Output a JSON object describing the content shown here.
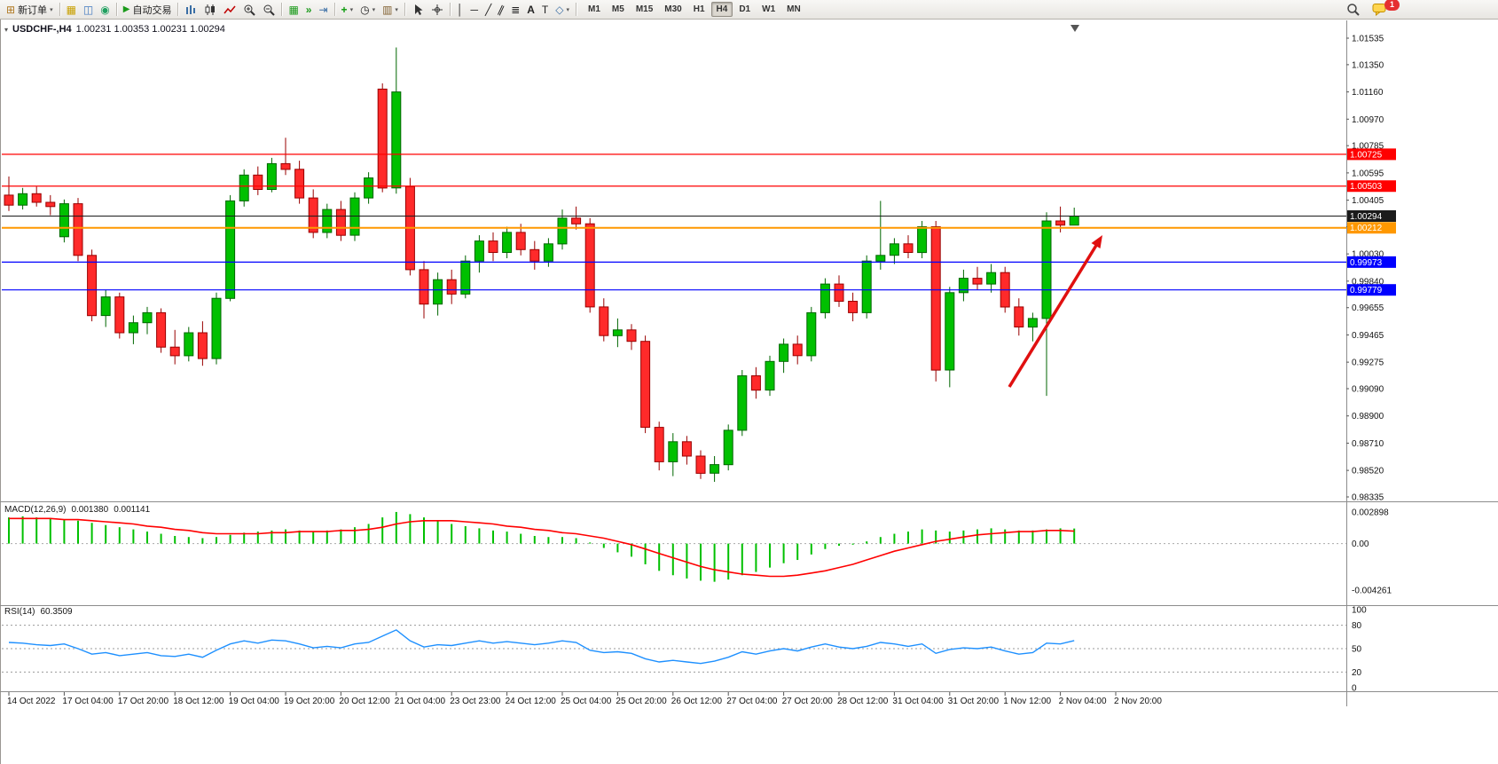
{
  "toolbar": {
    "new_order_label": "新订单",
    "autotrade_label": "自动交易",
    "timeframes": [
      "M1",
      "M5",
      "M15",
      "M30",
      "H1",
      "H4",
      "D1",
      "W1",
      "MN"
    ],
    "active_timeframe": "H4",
    "badge_count": "1"
  },
  "chart": {
    "symbol_period": "USDCHF-,H4",
    "ohlc_text": "1.00231 1.00353 1.00231 1.00294",
    "colors": {
      "up": "#00C000",
      "up_edge": "#006600",
      "down": "#FF2A2A",
      "down_edge": "#990000"
    },
    "price_axis": [
      "1.01535",
      "1.01350",
      "1.01160",
      "1.00970",
      "1.00785",
      "1.00595",
      "1.00405",
      "1.00220",
      "1.00030",
      "0.99840",
      "0.99655",
      "0.99465",
      "0.99275",
      "0.99090",
      "0.98900",
      "0.98710",
      "0.98520",
      "0.98335"
    ],
    "time_axis": [
      "14 Oct 2022",
      "17 Oct 04:00",
      "17 Oct 20:00",
      "18 Oct 12:00",
      "19 Oct 04:00",
      "19 Oct 20:00",
      "20 Oct 12:00",
      "21 Oct 04:00",
      "23 Oct 23:00",
      "24 Oct 12:00",
      "25 Oct 04:00",
      "25 Oct 20:00",
      "26 Oct 12:00",
      "27 Oct 04:00",
      "27 Oct 20:00",
      "28 Oct 12:00",
      "31 Oct 04:00",
      "31 Oct 20:00",
      "1 Nov 12:00",
      "2 Nov 04:00",
      "2 Nov 20:00"
    ],
    "hlines": [
      {
        "label": "1.00725",
        "value": 1.00725,
        "color": "#FF0000",
        "width": 1.2
      },
      {
        "label": "1.00503",
        "value": 1.00503,
        "color": "#FF0000",
        "width": 1.2
      },
      {
        "label": "1.00294",
        "value": 1.00294,
        "color": "#1b1b1b",
        "width": 1
      },
      {
        "label": "1.00212",
        "value": 1.00212,
        "color": "#FF9800",
        "width": 2
      },
      {
        "label": "0.99973",
        "value": 0.99973,
        "color": "#0000FF",
        "width": 1.2
      },
      {
        "label": "0.99779",
        "value": 0.99779,
        "color": "#0000FF",
        "width": 1.2
      }
    ],
    "arrow": {
      "color": "#E01010"
    },
    "candles": [
      [
        1.0044,
        1.0057,
        1.0033,
        1.0037
      ],
      [
        1.0037,
        1.0049,
        1.0034,
        1.0045
      ],
      [
        1.0045,
        1.005,
        1.0036,
        1.0039
      ],
      [
        1.0039,
        1.0044,
        1.003,
        1.0036
      ],
      [
        1.0015,
        1.0041,
        1.0011,
        1.0038
      ],
      [
        1.0038,
        1.0042,
        0.9998,
        1.0002
      ],
      [
        1.0002,
        1.0006,
        0.9956,
        0.996
      ],
      [
        0.996,
        0.9978,
        0.9952,
        0.9973
      ],
      [
        0.9973,
        0.9976,
        0.9944,
        0.9948
      ],
      [
        0.9948,
        0.996,
        0.994,
        0.9955
      ],
      [
        0.9955,
        0.9966,
        0.9947,
        0.9962
      ],
      [
        0.9962,
        0.9965,
        0.9934,
        0.9938
      ],
      [
        0.9938,
        0.995,
        0.9926,
        0.9932
      ],
      [
        0.9932,
        0.9952,
        0.9928,
        0.9948
      ],
      [
        0.9948,
        0.9956,
        0.9925,
        0.993
      ],
      [
        0.993,
        0.9976,
        0.9926,
        0.9972
      ],
      [
        0.9972,
        1.0044,
        0.997,
        1.004
      ],
      [
        1.004,
        1.0062,
        1.0036,
        1.0058
      ],
      [
        1.0058,
        1.0064,
        1.0044,
        1.0048
      ],
      [
        1.0048,
        1.007,
        1.0046,
        1.0066
      ],
      [
        1.0066,
        1.0084,
        1.0058,
        1.0062
      ],
      [
        1.0062,
        1.0068,
        1.0038,
        1.0042
      ],
      [
        1.0042,
        1.0048,
        1.0014,
        1.0018
      ],
      [
        1.0018,
        1.0038,
        1.0014,
        1.0034
      ],
      [
        1.0034,
        1.004,
        1.0012,
        1.0016
      ],
      [
        1.0016,
        1.0046,
        1.0012,
        1.0042
      ],
      [
        1.0042,
        1.006,
        1.0038,
        1.0056
      ],
      [
        1.0118,
        1.0122,
        1.0046,
        1.0049
      ],
      [
        1.0049,
        1.0147,
        1.0045,
        1.0116
      ],
      [
        1.005,
        1.0056,
        0.9988,
        0.9992
      ],
      [
        0.9992,
        0.9998,
        0.9958,
        0.9968
      ],
      [
        0.9968,
        0.999,
        0.996,
        0.9985
      ],
      [
        0.9985,
        0.9992,
        0.9968,
        0.9975
      ],
      [
        0.9975,
        1.0002,
        0.9972,
        0.9998
      ],
      [
        0.9998,
        1.0016,
        0.999,
        1.0012
      ],
      [
        1.0012,
        1.0018,
        0.9998,
        1.0004
      ],
      [
        1.0004,
        1.0022,
        1.0,
        1.0018
      ],
      [
        1.0018,
        1.0024,
        1.0002,
        1.0006
      ],
      [
        1.0006,
        1.0012,
        0.9992,
        0.9998
      ],
      [
        0.9998,
        1.0014,
        0.9994,
        1.001
      ],
      [
        1.001,
        1.0034,
        1.0006,
        1.0028
      ],
      [
        1.0028,
        1.0036,
        1.002,
        1.0024
      ],
      [
        1.0024,
        1.0028,
        0.9962,
        0.9966
      ],
      [
        0.9966,
        0.9972,
        0.9942,
        0.9946
      ],
      [
        0.9946,
        0.9958,
        0.9938,
        0.995
      ],
      [
        0.995,
        0.9954,
        0.9936,
        0.9942
      ],
      [
        0.9942,
        0.9946,
        0.9878,
        0.9882
      ],
      [
        0.9882,
        0.9886,
        0.9852,
        0.9858
      ],
      [
        0.9858,
        0.9878,
        0.9848,
        0.9872
      ],
      [
        0.9872,
        0.9876,
        0.9856,
        0.9862
      ],
      [
        0.9862,
        0.9866,
        0.9846,
        0.985
      ],
      [
        0.985,
        0.9862,
        0.9844,
        0.9856
      ],
      [
        0.9856,
        0.9884,
        0.9852,
        0.988
      ],
      [
        0.988,
        0.9922,
        0.9876,
        0.9918
      ],
      [
        0.9918,
        0.9924,
        0.9902,
        0.9908
      ],
      [
        0.9908,
        0.9932,
        0.9904,
        0.9928
      ],
      [
        0.9928,
        0.9944,
        0.992,
        0.994
      ],
      [
        0.994,
        0.9946,
        0.9926,
        0.9932
      ],
      [
        0.9932,
        0.9966,
        0.9928,
        0.9962
      ],
      [
        0.9962,
        0.9986,
        0.9958,
        0.9982
      ],
      [
        0.9982,
        0.9988,
        0.9966,
        0.997
      ],
      [
        0.997,
        0.9976,
        0.9956,
        0.9962
      ],
      [
        0.9962,
        1.0002,
        0.9958,
        0.9998
      ],
      [
        0.9998,
        1.004,
        0.9992,
        1.0002
      ],
      [
        1.0002,
        1.0014,
        0.9996,
        1.001
      ],
      [
        1.001,
        1.0016,
        1.0,
        1.0004
      ],
      [
        1.0004,
        1.0026,
        1.0,
        1.0022
      ],
      [
        1.0022,
        1.0026,
        0.9914,
        0.9922
      ],
      [
        0.9922,
        0.998,
        0.991,
        0.9976
      ],
      [
        0.9976,
        0.9992,
        0.997,
        0.9986
      ],
      [
        0.9986,
        0.9994,
        0.9978,
        0.9982
      ],
      [
        0.9982,
        0.9996,
        0.9976,
        0.999
      ],
      [
        0.999,
        0.9994,
        0.9962,
        0.9966
      ],
      [
        0.9966,
        0.9972,
        0.9946,
        0.9952
      ],
      [
        0.9952,
        0.9962,
        0.9942,
        0.9958
      ],
      [
        0.9958,
        1.0032,
        0.9904,
        1.0026
      ],
      [
        1.0026,
        1.0036,
        1.0018,
        1.00231
      ],
      [
        1.00231,
        1.00353,
        1.00231,
        1.00294
      ]
    ]
  },
  "macd": {
    "name": "MACD(12,26,9)",
    "value_main": "0.001380",
    "value_signal": "0.001141",
    "scale": [
      "0.002898",
      "0.00",
      "-0.004261"
    ],
    "colors": {
      "histogram": "#00C000",
      "signal": "#FF0000"
    },
    "histogram": [
      0.0024,
      0.0025,
      0.0024,
      0.0023,
      0.0022,
      0.0021,
      0.0019,
      0.0017,
      0.0015,
      0.0013,
      0.0011,
      0.0009,
      0.0007,
      0.0006,
      0.0005,
      0.0006,
      0.0008,
      0.001,
      0.0011,
      0.0012,
      0.0013,
      0.0012,
      0.0011,
      0.0012,
      0.0013,
      0.0015,
      0.0018,
      0.0024,
      0.0029,
      0.0027,
      0.0024,
      0.0021,
      0.0018,
      0.0016,
      0.0014,
      0.0012,
      0.0011,
      0.0009,
      0.0007,
      0.0006,
      0.0006,
      0.0005,
      0.0001,
      -0.0004,
      -0.0008,
      -0.0012,
      -0.0019,
      -0.0025,
      -0.0029,
      -0.0032,
      -0.0034,
      -0.0035,
      -0.0033,
      -0.0029,
      -0.0026,
      -0.0022,
      -0.0018,
      -0.0015,
      -0.001,
      -0.0005,
      -0.0002,
      -0.0001,
      0.0002,
      0.0006,
      0.0009,
      0.0011,
      0.0013,
      0.0012,
      0.0011,
      0.0012,
      0.0013,
      0.0014,
      0.0013,
      0.0012,
      0.0012,
      0.0013,
      0.0014,
      0.00138
    ],
    "signal": [
      0.0023,
      0.0023,
      0.0023,
      0.0023,
      0.0022,
      0.0022,
      0.0021,
      0.002,
      0.0019,
      0.0018,
      0.0016,
      0.0015,
      0.0013,
      0.0012,
      0.001,
      0.0009,
      0.0009,
      0.0009,
      0.0009,
      0.001,
      0.001,
      0.0011,
      0.0011,
      0.0011,
      0.0012,
      0.0012,
      0.0013,
      0.0015,
      0.0018,
      0.002,
      0.0021,
      0.0021,
      0.0021,
      0.002,
      0.0019,
      0.0018,
      0.0016,
      0.0015,
      0.0013,
      0.0012,
      0.001,
      0.0009,
      0.0007,
      0.0005,
      0.0002,
      -0.0001,
      -0.0005,
      -0.0009,
      -0.0013,
      -0.0017,
      -0.0021,
      -0.0024,
      -0.0026,
      -0.0028,
      -0.0029,
      -0.003,
      -0.003,
      -0.0029,
      -0.0027,
      -0.0025,
      -0.0022,
      -0.0019,
      -0.0015,
      -0.0011,
      -0.0007,
      -0.0004,
      -0.0001,
      0.0002,
      0.0004,
      0.0006,
      0.0008,
      0.0009,
      0.001,
      0.0011,
      0.0011,
      0.0012,
      0.0012,
      0.001141
    ]
  },
  "rsi": {
    "name": "RSI(14)",
    "value": "60.3509",
    "scale": [
      "100",
      "80",
      "50",
      "20",
      "0"
    ],
    "levels": [
      80,
      50,
      20
    ],
    "color": "#1E90FF",
    "values": [
      58,
      57,
      55,
      54,
      56,
      50,
      43,
      45,
      41,
      43,
      45,
      41,
      40,
      43,
      39,
      48,
      56,
      60,
      57,
      61,
      60,
      56,
      51,
      53,
      51,
      56,
      58,
      66,
      74,
      60,
      52,
      55,
      54,
      57,
      60,
      57,
      59,
      57,
      55,
      57,
      60,
      58,
      48,
      45,
      46,
      44,
      37,
      33,
      35,
      33,
      31,
      34,
      39,
      46,
      43,
      47,
      50,
      47,
      52,
      56,
      52,
      50,
      53,
      58,
      56,
      53,
      56,
      44,
      49,
      51,
      50,
      52,
      47,
      43,
      45,
      57,
      56,
      60.35
    ]
  }
}
